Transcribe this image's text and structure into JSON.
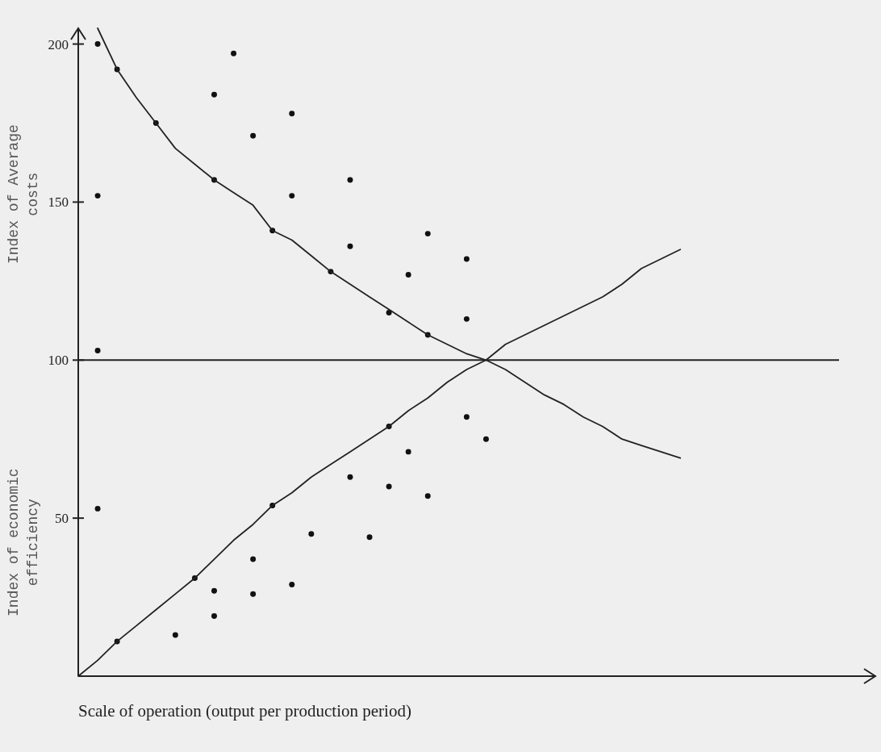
{
  "chart_data": {
    "type": "scatter",
    "xlabel": "Scale of operation (output per production period)",
    "ylabel": "Index of Average costs",
    "annotations": [
      "Index of economic efficiency"
    ],
    "categories": [
      null,
      null,
      null,
      null,
      null,
      null,
      null,
      null,
      null,
      null,
      null,
      null,
      null,
      null,
      null,
      null,
      null,
      null,
      null,
      null,
      null,
      null,
      null,
      null,
      null,
      null,
      null,
      null,
      null,
      null,
      null,
      null,
      null,
      null,
      null,
      null,
      null,
      null,
      null,
      null,
      null
    ],
    "ylim": [
      0,
      205
    ],
    "yticks": [
      50,
      100,
      150,
      200
    ],
    "tick_labels": "y",
    "ref_lines": [
      {
        "axis": "y",
        "value": 100,
        "color": "#222222"
      }
    ],
    "series": [
      {
        "type": "scatter",
        "color": "#111111",
        "marker": "circle",
        "values": [
          null,
          200,
          192,
          null,
          175,
          13,
          31,
          184,
          197,
          171,
          141,
          178,
          45,
          128,
          157,
          44,
          115,
          127,
          140,
          null,
          132,
          75,
          null,
          null,
          null,
          null,
          null,
          null,
          null,
          null,
          null,
          null,
          null,
          null,
          null,
          null,
          null,
          null,
          null,
          null,
          null
        ]
      },
      {
        "type": "scatter",
        "color": "#111111",
        "marker": "circle",
        "values": [
          null,
          152,
          11,
          null,
          null,
          null,
          null,
          157,
          null,
          37,
          54,
          152,
          null,
          null,
          136,
          null,
          79,
          71,
          108,
          null,
          113,
          null,
          null,
          null,
          null,
          null,
          null,
          null,
          null,
          null,
          null,
          null,
          null,
          null,
          null,
          null,
          null,
          null,
          null,
          null,
          null
        ]
      },
      {
        "type": "scatter",
        "color": "#111111",
        "marker": "circle",
        "values": [
          null,
          103,
          null,
          null,
          null,
          null,
          null,
          27,
          null,
          26,
          null,
          29,
          null,
          null,
          63,
          null,
          60,
          null,
          57,
          null,
          82,
          null,
          null,
          null,
          null,
          null,
          null,
          null,
          null,
          null,
          null,
          null,
          null,
          null,
          null,
          null,
          null,
          null,
          null,
          null,
          null
        ]
      },
      {
        "type": "scatter",
        "color": "#111111",
        "marker": "circle",
        "values": [
          null,
          53,
          null,
          null,
          null,
          null,
          null,
          19,
          null,
          null,
          null,
          null,
          null,
          null,
          null,
          null,
          null,
          null,
          null,
          null,
          null,
          null,
          null,
          null,
          null,
          null,
          null,
          null,
          null,
          null,
          null,
          null,
          null,
          null,
          null,
          null,
          null,
          null,
          null,
          null,
          null
        ]
      },
      {
        "type": "line",
        "color": "#222222",
        "marker": "none",
        "line_style": "solid",
        "values": [
          null,
          205,
          192,
          183,
          175,
          167,
          162,
          157,
          153,
          149,
          141,
          138,
          133,
          128,
          124,
          120,
          116,
          112,
          108,
          105,
          102,
          100,
          97,
          93,
          89,
          86,
          82,
          79,
          75,
          73,
          71,
          69,
          null,
          null,
          null,
          null,
          null,
          null,
          null,
          null,
          null
        ]
      },
      {
        "type": "line",
        "color": "#222222",
        "marker": "none",
        "line_style": "solid",
        "values": [
          0,
          5,
          11,
          16,
          21,
          26,
          31,
          37,
          43,
          48,
          54,
          58,
          63,
          67,
          71,
          75,
          79,
          84,
          88,
          93,
          97,
          100,
          105,
          108,
          111,
          114,
          117,
          120,
          124,
          129,
          132,
          135,
          null,
          null,
          null,
          null,
          null,
          null,
          null,
          null,
          null
        ]
      }
    ]
  }
}
